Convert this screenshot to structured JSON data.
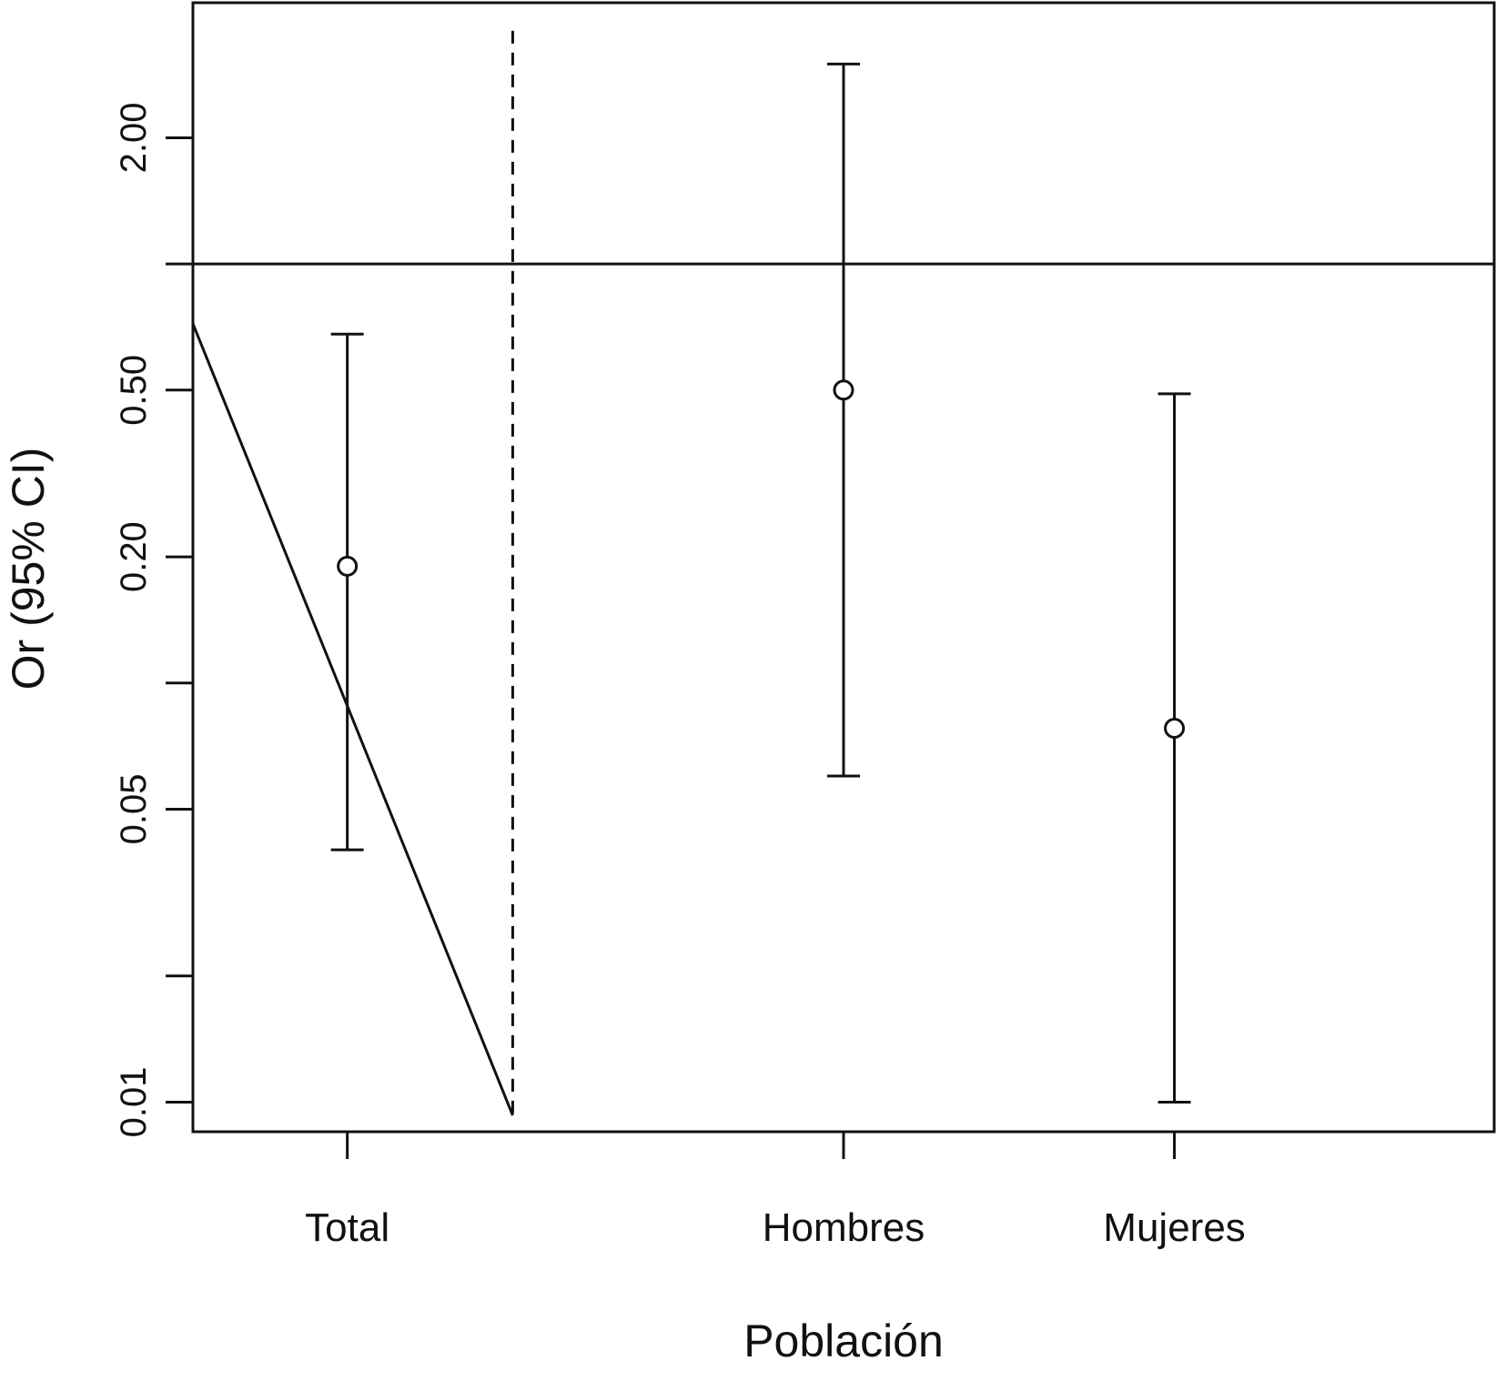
{
  "chart_data": {
    "type": "scatter",
    "xlabel": "Población",
    "ylabel": "Or (95% CI)",
    "y_scale": "log",
    "ylim": [
      0.0085,
      4.2
    ],
    "y_ticks": [
      {
        "value": 0.01,
        "label": "0.01"
      },
      {
        "value": 0.02,
        "label": ""
      },
      {
        "value": 0.05,
        "label": "0.05"
      },
      {
        "value": 0.1,
        "label": ""
      },
      {
        "value": 0.2,
        "label": "0.20"
      },
      {
        "value": 0.5,
        "label": "0.50"
      },
      {
        "value": 1.0,
        "label": ""
      },
      {
        "value": 2.0,
        "label": "2.00"
      }
    ],
    "xlim": [
      0.3,
      6.2
    ],
    "categories": [
      "Total",
      "Hombres",
      "Mujeres"
    ],
    "points": [
      {
        "category": "Total",
        "x": 1.0,
        "or": 0.19,
        "lower": 0.04,
        "upper": 0.68
      },
      {
        "category": "Hombres",
        "x": 3.25,
        "or": 0.5,
        "lower": 0.06,
        "upper": 3.0
      },
      {
        "category": "Mujeres",
        "x": 4.75,
        "or": 0.078,
        "lower": 0.01,
        "upper": 0.49
      }
    ],
    "reference_line": {
      "y": 1.0,
      "style": "solid"
    },
    "separator_line": {
      "x": 1.75,
      "y_from": 0.0093,
      "y_to": 3.6,
      "style": "dashed"
    },
    "trend_line": {
      "x1": 0.3,
      "y1": 0.72,
      "x2": 1.75,
      "y2": 0.0093
    },
    "grid": false,
    "legend": "none"
  }
}
